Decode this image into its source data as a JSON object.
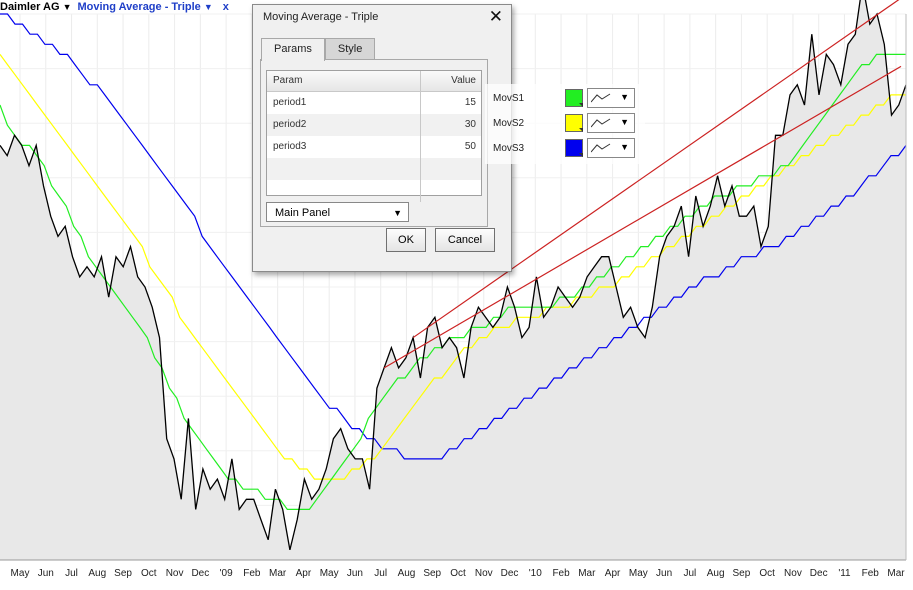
{
  "toolbar": {
    "symbol": "Daimler AG",
    "study": "Moving Average - Triple",
    "close": "x"
  },
  "dialog": {
    "title": "Moving Average - Triple",
    "close": "✕",
    "tabs": [
      "Params",
      "Style"
    ],
    "active_tab": "Params",
    "table_headers": {
      "param": "Param",
      "value": "Value"
    },
    "params": [
      {
        "name": "period1",
        "value": "15"
      },
      {
        "name": "period2",
        "value": "30"
      },
      {
        "name": "period3",
        "value": "50"
      }
    ],
    "panel_select": "Main Panel",
    "ok_label": "OK",
    "cancel_label": "Cancel"
  },
  "styles": [
    {
      "label": "MovS1",
      "color": "#22ee22"
    },
    {
      "label": "MovS2",
      "color": "#ffff00"
    },
    {
      "label": "MovS3",
      "color": "#0000ee"
    }
  ],
  "chart_data": {
    "type": "line",
    "x_tick_labels": [
      "May",
      "Jun",
      "Jul",
      "Aug",
      "Sep",
      "Oct",
      "Nov",
      "Dec",
      "'09",
      "Feb",
      "Mar",
      "Apr",
      "May",
      "Jun",
      "Jul",
      "Aug",
      "Sep",
      "Oct",
      "Nov",
      "Dec",
      "'10",
      "Feb",
      "Mar",
      "Apr",
      "May",
      "Jun",
      "Jul",
      "Aug",
      "Sep",
      "Oct",
      "Nov",
      "Dec",
      "'11",
      "Feb",
      "Mar"
    ],
    "series": [
      {
        "name": "Daimler AG",
        "color": "#000000",
        "values": [
          49,
          48,
          50,
          49,
          47,
          49,
          45,
          42,
          40,
          41,
          38,
          36,
          37,
          36,
          38,
          34,
          38,
          37,
          39,
          36,
          35,
          33,
          30,
          20,
          18,
          14,
          22,
          13,
          17,
          15,
          16,
          14,
          18,
          13,
          14,
          14,
          12,
          10,
          15,
          13,
          9,
          12,
          16,
          14,
          15,
          17,
          20,
          21,
          19,
          18,
          18,
          15,
          25,
          27,
          29,
          27,
          28,
          30,
          26,
          31,
          32,
          29,
          30,
          29,
          26,
          31,
          33,
          32,
          31,
          32,
          35,
          33,
          30,
          31,
          36,
          32,
          33,
          35,
          34,
          33,
          34,
          36,
          37,
          38,
          38,
          35,
          32,
          33,
          31,
          30,
          33,
          38,
          40,
          41,
          43,
          38,
          44,
          41,
          43,
          46,
          43,
          45,
          42,
          42,
          43,
          39,
          41,
          50,
          50,
          54,
          55,
          53,
          60,
          54,
          58,
          57,
          55,
          59,
          60,
          65,
          61,
          62,
          59,
          52,
          53,
          55
        ]
      },
      {
        "name": "MovS1",
        "color": "#22ee22",
        "values": [
          53,
          51,
          50,
          49,
          49,
          48,
          47,
          45,
          44,
          43,
          41,
          40,
          38,
          37,
          36,
          35,
          34,
          33,
          32,
          31,
          30,
          28,
          27,
          25,
          24,
          22,
          21,
          20,
          19,
          18,
          17,
          16,
          16,
          15,
          15,
          15,
          14,
          14,
          14,
          13,
          13,
          13,
          13,
          14,
          15,
          16,
          17,
          18,
          19,
          20,
          22,
          23,
          24,
          25,
          26,
          26,
          27,
          28,
          28,
          29,
          29,
          30,
          30,
          30,
          31,
          31,
          31,
          32,
          32,
          33,
          33,
          33,
          33,
          33,
          33,
          33,
          34,
          34,
          34,
          35,
          35,
          36,
          36,
          37,
          37,
          38,
          38,
          39,
          39,
          40,
          40,
          41,
          41,
          42,
          42,
          43,
          43,
          44,
          44,
          44,
          45,
          45,
          45,
          46,
          46,
          46,
          47,
          47,
          48,
          49,
          50,
          51,
          52,
          53,
          54,
          55,
          56,
          57,
          57,
          58,
          58,
          58,
          58,
          58
        ]
      },
      {
        "name": "MovS2",
        "color": "#ffff00",
        "values": [
          58,
          57,
          56,
          55,
          54,
          53,
          52,
          51,
          50,
          49,
          48,
          47,
          46,
          45,
          44,
          43,
          42,
          41,
          40,
          39,
          37,
          36,
          35,
          34,
          32,
          31,
          30,
          29,
          28,
          27,
          26,
          25,
          24,
          23,
          22,
          21,
          20,
          19,
          18,
          18,
          17,
          17,
          16,
          16,
          16,
          16,
          16,
          17,
          17,
          18,
          18,
          19,
          20,
          21,
          22,
          23,
          24,
          25,
          26,
          26,
          27,
          28,
          29,
          29,
          30,
          30,
          31,
          31,
          31,
          32,
          32,
          32,
          32,
          33,
          33,
          33,
          33,
          34,
          34,
          34,
          35,
          35,
          35,
          36,
          36,
          37,
          37,
          38,
          38,
          39,
          39,
          40,
          40,
          41,
          41,
          42,
          42,
          43,
          43,
          44,
          44,
          45,
          45,
          46,
          46,
          47,
          47,
          48,
          48,
          49,
          49,
          50,
          50,
          51,
          51,
          52,
          52,
          53,
          53,
          54,
          54,
          54
        ]
      },
      {
        "name": "MovS3",
        "color": "#0000ee",
        "values": [
          62,
          62,
          61,
          61,
          60,
          60,
          59,
          59,
          58,
          58,
          57,
          56,
          55,
          55,
          54,
          53,
          52,
          51,
          50,
          49,
          48,
          47,
          46,
          45,
          44,
          43,
          42,
          40,
          39,
          38,
          37,
          36,
          35,
          34,
          33,
          32,
          31,
          30,
          29,
          28,
          27,
          26,
          25,
          24,
          23,
          23,
          22,
          21,
          21,
          20,
          20,
          19,
          19,
          19,
          18,
          18,
          18,
          18,
          18,
          18,
          19,
          19,
          20,
          20,
          21,
          21,
          22,
          22,
          23,
          23,
          24,
          24,
          25,
          25,
          26,
          26,
          27,
          27,
          28,
          28,
          29,
          29,
          30,
          30,
          31,
          31,
          32,
          32,
          33,
          33,
          34,
          34,
          35,
          35,
          36,
          36,
          36,
          37,
          37,
          38,
          38,
          38,
          39,
          39,
          39,
          40,
          40,
          41,
          41,
          42,
          42,
          43,
          43,
          44,
          44,
          45,
          46,
          46,
          47,
          48,
          48,
          49
        ]
      }
    ],
    "trendlines": [
      {
        "color": "#cc2222"
      },
      {
        "color": "#cc2222"
      }
    ],
    "ylim": [
      8,
      62
    ],
    "grid": true
  }
}
